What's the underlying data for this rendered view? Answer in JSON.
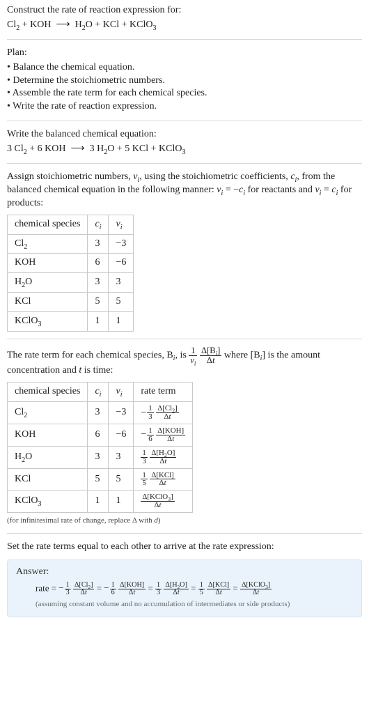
{
  "header": {
    "title": "Construct the rate of reaction expression for:",
    "equation_html": "Cl<span class='sub'>2</span> + KOH&nbsp;&nbsp;⟶&nbsp;&nbsp;H<span class='sub'>2</span>O + KCl + KClO<span class='sub'>3</span>"
  },
  "plan": {
    "title": "Plan:",
    "items": [
      "• Balance the chemical equation.",
      "• Determine the stoichiometric numbers.",
      "• Assemble the rate term for each chemical species.",
      "• Write the rate of reaction expression."
    ]
  },
  "balanced": {
    "title": "Write the balanced chemical equation:",
    "equation_html": "3 Cl<span class='sub'>2</span> + 6 KOH&nbsp;&nbsp;⟶&nbsp;&nbsp;3 H<span class='sub'>2</span>O + 5 KCl + KClO<span class='sub'>3</span>"
  },
  "stoich": {
    "intro_html": "Assign stoichiometric numbers, <span class='ital'>ν<span class='sub'>i</span></span>, using the stoichiometric coefficients, <span class='ital'>c<span class='sub'>i</span></span>, from the balanced chemical equation in the following manner: <span class='ital'>ν<span class='sub'>i</span></span> = −<span class='ital'>c<span class='sub'>i</span></span> for reactants and <span class='ital'>ν<span class='sub'>i</span></span> = <span class='ital'>c<span class='sub'>i</span></span> for products:",
    "headers": {
      "species": "chemical species",
      "ci": "<span class='ital'>c<span class='sub'>i</span></span>",
      "vi": "<span class='ital'>ν<span class='sub'>i</span></span>"
    },
    "rows": [
      {
        "species_html": "Cl<span class='sub'>2</span>",
        "ci": "3",
        "vi": "−3"
      },
      {
        "species_html": "KOH",
        "ci": "6",
        "vi": "−6"
      },
      {
        "species_html": "H<span class='sub'>2</span>O",
        "ci": "3",
        "vi": "3"
      },
      {
        "species_html": "KCl",
        "ci": "5",
        "vi": "5"
      },
      {
        "species_html": "KClO<span class='sub'>3</span>",
        "ci": "1",
        "vi": "1"
      }
    ]
  },
  "rate_terms": {
    "intro_html": "The rate term for each chemical species, B<span class='sub'><span class='ital'>i</span></span>, is <span class='frac inline-mid'><span class='num'>1</span><span class='den'><span class='ital'>ν<span class='sub'>i</span></span></span></span> <span class='frac inline-mid'><span class='num'>Δ[B<span class='sub'><span class='ital'>i</span></span>]</span><span class='den'>Δ<span class='ital'>t</span></span></span> where [B<span class='sub'><span class='ital'>i</span></span>] is the amount concentration and <span class='ital'>t</span> is time:",
    "headers": {
      "species": "chemical species",
      "ci": "<span class='ital'>c<span class='sub'>i</span></span>",
      "vi": "<span class='ital'>ν<span class='sub'>i</span></span>",
      "rate": "rate term"
    },
    "rows": [
      {
        "species_html": "Cl<span class='sub'>2</span>",
        "ci": "3",
        "vi": "−3",
        "rate_html": "<span class='minus'>−</span><span class='frac frac-sm'><span class='num'>1</span><span class='den'>3</span></span> <span class='frac frac-sm'><span class='num'>Δ[Cl<span class='sub'>2</span>]</span><span class='den'>Δ<span class='ital'>t</span></span></span>"
      },
      {
        "species_html": "KOH",
        "ci": "6",
        "vi": "−6",
        "rate_html": "<span class='minus'>−</span><span class='frac frac-sm'><span class='num'>1</span><span class='den'>6</span></span> <span class='frac frac-sm'><span class='num'>Δ[KOH]</span><span class='den'>Δ<span class='ital'>t</span></span></span>"
      },
      {
        "species_html": "H<span class='sub'>2</span>O",
        "ci": "3",
        "vi": "3",
        "rate_html": "<span class='frac frac-sm'><span class='num'>1</span><span class='den'>3</span></span> <span class='frac frac-sm'><span class='num'>Δ[H<span class='sub'>2</span>O]</span><span class='den'>Δ<span class='ital'>t</span></span></span>"
      },
      {
        "species_html": "KCl",
        "ci": "5",
        "vi": "5",
        "rate_html": "<span class='frac frac-sm'><span class='num'>1</span><span class='den'>5</span></span> <span class='frac frac-sm'><span class='num'>Δ[KCl]</span><span class='den'>Δ<span class='ital'>t</span></span></span>"
      },
      {
        "species_html": "KClO<span class='sub'>3</span>",
        "ci": "1",
        "vi": "1",
        "rate_html": "<span class='frac frac-sm'><span class='num'>Δ[KClO<span class='sub'>3</span>]</span><span class='den'>Δ<span class='ital'>t</span></span></span>"
      }
    ],
    "note_html": "(for infinitesimal rate of change, replace Δ with <span class='ital'>d</span>)"
  },
  "final": {
    "intro": "Set the rate terms equal to each other to arrive at the rate expression:"
  },
  "answer": {
    "label": "Answer:",
    "rate_html": "rate = <span class='minus'>−</span><span class='frac frac-sm'><span class='num'>1</span><span class='den'>3</span></span> <span class='frac frac-sm'><span class='num'>Δ[Cl<span class='sub'>2</span>]</span><span class='den'>Δ<span class='ital'>t</span></span></span> = <span class='minus'>−</span><span class='frac frac-sm'><span class='num'>1</span><span class='den'>6</span></span> <span class='frac frac-sm'><span class='num'>Δ[KOH]</span><span class='den'>Δ<span class='ital'>t</span></span></span> = <span class='frac frac-sm'><span class='num'>1</span><span class='den'>3</span></span> <span class='frac frac-sm'><span class='num'>Δ[H<span class='sub'>2</span>O]</span><span class='den'>Δ<span class='ital'>t</span></span></span> = <span class='frac frac-sm'><span class='num'>1</span><span class='den'>5</span></span> <span class='frac frac-sm'><span class='num'>Δ[KCl]</span><span class='den'>Δ<span class='ital'>t</span></span></span> = <span class='frac frac-sm'><span class='num'>Δ[KClO<span class='sub'>3</span>]</span><span class='den'>Δ<span class='ital'>t</span></span></span>",
    "note": "(assuming constant volume and no accumulation of intermediates or side products)"
  },
  "style": {
    "background": "#ffffff",
    "rule_color": "#d8d8d8",
    "answer_bg": "#eaf3fb",
    "answer_border": "#d4e5f3",
    "table_border": "#c8c8c8"
  }
}
